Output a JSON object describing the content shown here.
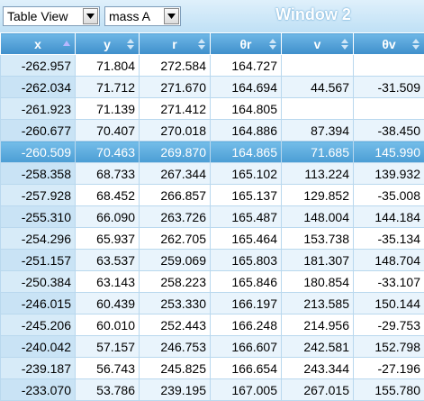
{
  "toolbar": {
    "view_select": {
      "label": "Table View",
      "icon": "chevron-down-icon"
    },
    "mass_select": {
      "label": "mass A",
      "icon": "chevron-down-icon"
    },
    "window_title": "Window 2"
  },
  "table": {
    "columns": [
      {
        "label": "x",
        "sort": "ascending"
      },
      {
        "label": "y",
        "sort": "none"
      },
      {
        "label": "r",
        "sort": "none"
      },
      {
        "label": "θr",
        "sort": "none"
      },
      {
        "label": "v",
        "sort": "none"
      },
      {
        "label": "θv",
        "sort": "none"
      }
    ],
    "selected_row": 4,
    "rows": [
      [
        "-262.957",
        "71.804",
        "272.584",
        "164.727",
        "",
        ""
      ],
      [
        "-262.034",
        "71.712",
        "271.670",
        "164.694",
        "44.567",
        "-31.509"
      ],
      [
        "-261.923",
        "71.139",
        "271.412",
        "164.805",
        "",
        ""
      ],
      [
        "-260.677",
        "70.407",
        "270.018",
        "164.886",
        "87.394",
        "-38.450"
      ],
      [
        "-260.509",
        "70.463",
        "269.870",
        "164.865",
        "71.685",
        "145.990"
      ],
      [
        "-258.358",
        "68.733",
        "267.344",
        "165.102",
        "113.224",
        "139.932"
      ],
      [
        "-257.928",
        "68.452",
        "266.857",
        "165.137",
        "129.852",
        "-35.008"
      ],
      [
        "-255.310",
        "66.090",
        "263.726",
        "165.487",
        "148.004",
        "144.184"
      ],
      [
        "-254.296",
        "65.937",
        "262.705",
        "165.464",
        "153.738",
        "-35.134"
      ],
      [
        "-251.157",
        "63.537",
        "259.069",
        "165.803",
        "181.307",
        "148.704"
      ],
      [
        "-250.384",
        "63.143",
        "258.223",
        "165.846",
        "180.854",
        "-33.107"
      ],
      [
        "-246.015",
        "60.439",
        "253.330",
        "166.197",
        "213.585",
        "150.144"
      ],
      [
        "-245.206",
        "60.010",
        "252.443",
        "166.248",
        "214.956",
        "-29.753"
      ],
      [
        "-240.042",
        "57.157",
        "246.753",
        "166.607",
        "242.581",
        "152.798"
      ],
      [
        "-239.187",
        "56.743",
        "245.825",
        "166.654",
        "243.344",
        "-27.196"
      ],
      [
        "-233.070",
        "53.786",
        "239.195",
        "167.005",
        "267.015",
        "155.780"
      ]
    ]
  },
  "colors": {
    "header_bg": "#4f9fd6",
    "selected_row_bg": "#5eaedf",
    "title_bar_bg": "#cfe8f8"
  }
}
